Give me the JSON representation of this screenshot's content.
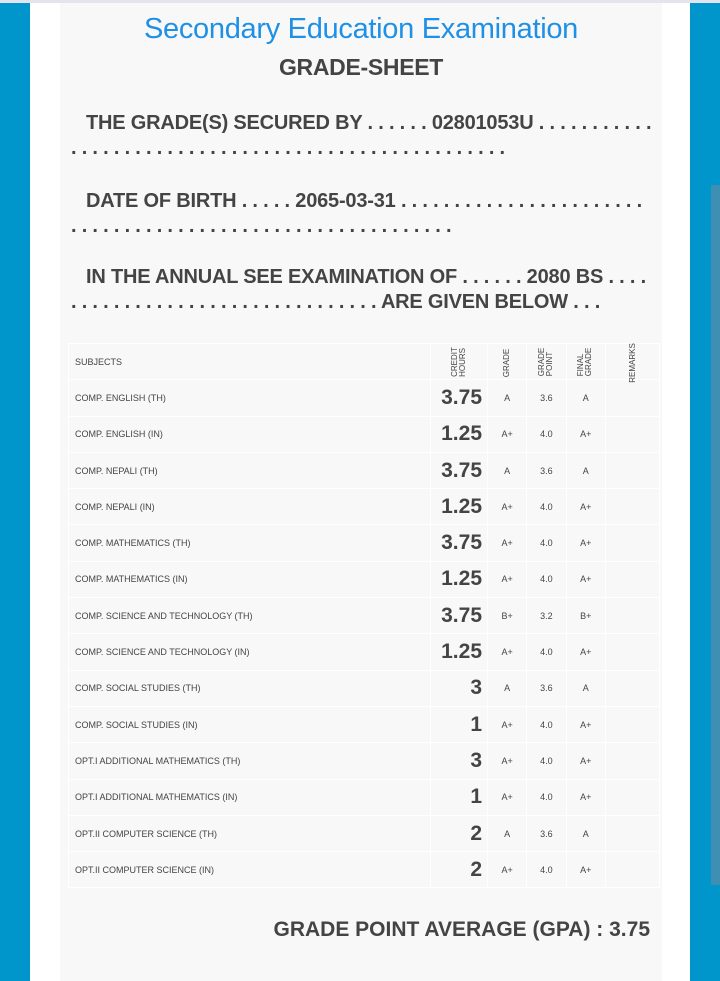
{
  "header": {
    "exam_title": "Secondary Education Examination",
    "sheet_title": "GRADE-SHEET"
  },
  "student": {
    "line1_prefix": "THE GRADE(S) SECURED BY . . . . . . ",
    "symbol_no": "02801053U",
    "line1_suffix": " . . . . . . . . . . . . . . . . . . . . . . . . . . . . . . . . . . . . . . . . . . . . . . . . . . . .",
    "line2_prefix": "DATE OF BIRTH . . . . . ",
    "dob": "2065-03-31",
    "line2_suffix": " . . . . . . . . . . . . . . . . . . . . . . . . . . . . . . . . . . . . . . . . . . . . . . . . . . . . . . . . . . .",
    "line3_prefix": "IN THE ANNUAL SEE EXAMINATION OF . . . . . . ",
    "year": "2080 BS",
    "line3_suffix": " . . . . . . . . . . . . . . . . . . . . . . . . . . . . . . . . . ARE GIVEN BELOW . . ."
  },
  "table": {
    "headers": {
      "subjects": "SUBJECTS",
      "credit_hours": "CREDIT\nHOURS",
      "grade": "GRADE",
      "grade_point": "GRADE\nPOINT",
      "final_grade": "FINAL\nGRADE",
      "remarks": "REMARKS"
    },
    "rows": [
      {
        "subject": "COMP. ENGLISH (TH)",
        "credit": "3.75",
        "grade": "A",
        "gp": "3.6",
        "final": "A"
      },
      {
        "subject": "COMP. ENGLISH (IN)",
        "credit": "1.25",
        "grade": "A+",
        "gp": "4.0",
        "final": "A+"
      },
      {
        "subject": "COMP. NEPALI (TH)",
        "credit": "3.75",
        "grade": "A",
        "gp": "3.6",
        "final": "A"
      },
      {
        "subject": "COMP. NEPALI (IN)",
        "credit": "1.25",
        "grade": "A+",
        "gp": "4.0",
        "final": "A+"
      },
      {
        "subject": "COMP. MATHEMATICS (TH)",
        "credit": "3.75",
        "grade": "A+",
        "gp": "4.0",
        "final": "A+"
      },
      {
        "subject": "COMP. MATHEMATICS (IN)",
        "credit": "1.25",
        "grade": "A+",
        "gp": "4.0",
        "final": "A+"
      },
      {
        "subject": "COMP. SCIENCE AND TECHNOLOGY (TH)",
        "credit": "3.75",
        "grade": "B+",
        "gp": "3.2",
        "final": "B+"
      },
      {
        "subject": "COMP. SCIENCE AND TECHNOLOGY (IN)",
        "credit": "1.25",
        "grade": "A+",
        "gp": "4.0",
        "final": "A+"
      },
      {
        "subject": "COMP. SOCIAL STUDIES (TH)",
        "credit": "3",
        "grade": "A",
        "gp": "3.6",
        "final": "A"
      },
      {
        "subject": "COMP. SOCIAL STUDIES (IN)",
        "credit": "1",
        "grade": "A+",
        "gp": "4.0",
        "final": "A+"
      },
      {
        "subject": "OPT.I ADDITIONAL MATHEMATICS (TH)",
        "credit": "3",
        "grade": "A+",
        "gp": "4.0",
        "final": "A+"
      },
      {
        "subject": "OPT.I ADDITIONAL MATHEMATICS (IN)",
        "credit": "1",
        "grade": "A+",
        "gp": "4.0",
        "final": "A+"
      },
      {
        "subject": "OPT.II COMPUTER SCIENCE (TH)",
        "credit": "2",
        "grade": "A",
        "gp": "3.6",
        "final": "A"
      },
      {
        "subject": "OPT.II COMPUTER SCIENCE (IN)",
        "credit": "2",
        "grade": "A+",
        "gp": "4.0",
        "final": "A+"
      }
    ]
  },
  "gpa": {
    "label": "GRADE POINT AVERAGE (GPA) : ",
    "value": "3.75"
  },
  "colors": {
    "side": "#0096cc",
    "title": "#1e90e6",
    "text": "#444444"
  }
}
